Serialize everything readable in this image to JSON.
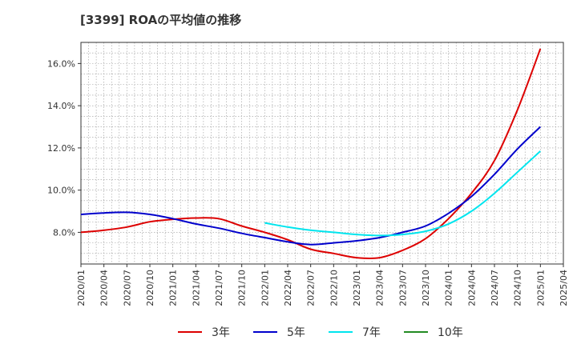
{
  "chart_data": {
    "type": "line",
    "title": "[3399]  ROAの平均値の推移",
    "xlabel": "",
    "ylabel": "",
    "x_ticks": [
      "2020/01",
      "2020/04",
      "2020/07",
      "2020/10",
      "2021/01",
      "2021/04",
      "2021/07",
      "2021/10",
      "2022/01",
      "2022/04",
      "2022/07",
      "2022/10",
      "2023/01",
      "2023/04",
      "2023/07",
      "2023/10",
      "2024/01",
      "2024/04",
      "2024/07",
      "2024/10",
      "2025/01",
      "2025/04"
    ],
    "y_ticks": [
      "8.0%",
      "10.0%",
      "12.0%",
      "14.0%",
      "16.0%"
    ],
    "ylim": [
      6.5,
      17.0
    ],
    "grid": true,
    "legend_position": "bottom",
    "series": [
      {
        "name": "3年",
        "color": "#dd0000",
        "points": [
          [
            "2020/01",
            8.0
          ],
          [
            "2020/04",
            8.1
          ],
          [
            "2020/07",
            8.25
          ],
          [
            "2020/10",
            8.5
          ],
          [
            "2021/01",
            8.62
          ],
          [
            "2021/04",
            8.68
          ],
          [
            "2021/07",
            8.65
          ],
          [
            "2021/10",
            8.3
          ],
          [
            "2022/01",
            8.0
          ],
          [
            "2022/04",
            7.65
          ],
          [
            "2022/07",
            7.2
          ],
          [
            "2022/10",
            7.0
          ],
          [
            "2023/01",
            6.8
          ],
          [
            "2023/04",
            6.8
          ],
          [
            "2023/07",
            7.15
          ],
          [
            "2023/10",
            7.7
          ],
          [
            "2024/01",
            8.65
          ],
          [
            "2024/04",
            9.85
          ],
          [
            "2024/07",
            11.4
          ],
          [
            "2024/10",
            13.8
          ],
          [
            "2025/01",
            16.7
          ]
        ]
      },
      {
        "name": "5年",
        "color": "#0000cc",
        "points": [
          [
            "2020/01",
            8.85
          ],
          [
            "2020/04",
            8.92
          ],
          [
            "2020/07",
            8.95
          ],
          [
            "2020/10",
            8.85
          ],
          [
            "2021/01",
            8.65
          ],
          [
            "2021/04",
            8.4
          ],
          [
            "2021/07",
            8.2
          ],
          [
            "2021/10",
            7.95
          ],
          [
            "2022/01",
            7.75
          ],
          [
            "2022/04",
            7.55
          ],
          [
            "2022/07",
            7.42
          ],
          [
            "2022/10",
            7.5
          ],
          [
            "2023/01",
            7.6
          ],
          [
            "2023/04",
            7.75
          ],
          [
            "2023/07",
            8.0
          ],
          [
            "2023/10",
            8.3
          ],
          [
            "2024/01",
            8.9
          ],
          [
            "2024/04",
            9.7
          ],
          [
            "2024/07",
            10.75
          ],
          [
            "2024/10",
            11.95
          ],
          [
            "2025/01",
            13.0
          ]
        ]
      },
      {
        "name": "7年",
        "color": "#00e5ee",
        "points": [
          [
            "2022/01",
            8.45
          ],
          [
            "2022/04",
            8.25
          ],
          [
            "2022/07",
            8.1
          ],
          [
            "2022/10",
            8.0
          ],
          [
            "2023/01",
            7.9
          ],
          [
            "2023/04",
            7.85
          ],
          [
            "2023/07",
            7.9
          ],
          [
            "2023/10",
            8.05
          ],
          [
            "2024/01",
            8.4
          ],
          [
            "2024/04",
            9.0
          ],
          [
            "2024/07",
            9.85
          ],
          [
            "2024/10",
            10.85
          ],
          [
            "2025/01",
            11.85
          ]
        ]
      },
      {
        "name": "10年",
        "color": "#228b22",
        "points": []
      }
    ]
  }
}
